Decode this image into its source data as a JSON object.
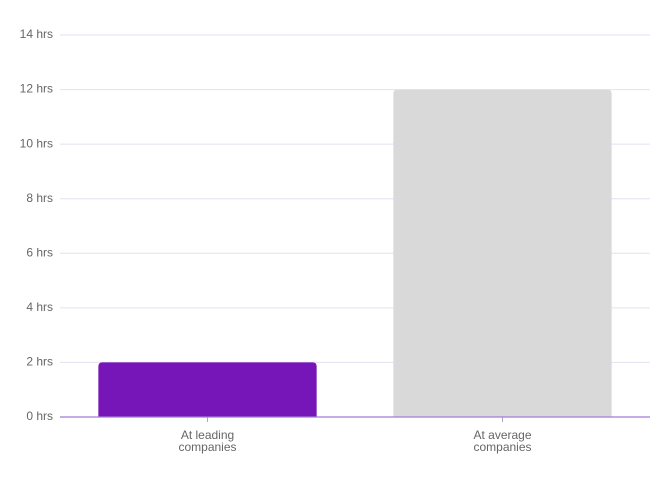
{
  "chart_data": {
    "type": "bar",
    "categories": [
      "At leading companies",
      "At average companies"
    ],
    "values": [
      2,
      12
    ],
    "colors": [
      "#7616b8",
      "#d9d9d9"
    ],
    "ylim": [
      0,
      14
    ],
    "yticks": [
      {
        "value": 0,
        "label": "0 hrs"
      },
      {
        "value": 2,
        "label": "2 hrs"
      },
      {
        "value": 4,
        "label": "4 hrs"
      },
      {
        "value": 6,
        "label": "6 hrs"
      },
      {
        "value": 8,
        "label": "8 hrs"
      },
      {
        "value": 10,
        "label": "10 hrs"
      },
      {
        "value": 12,
        "label": "12 hrs"
      },
      {
        "value": 14,
        "label": "14 hrs"
      }
    ],
    "grid": true
  }
}
